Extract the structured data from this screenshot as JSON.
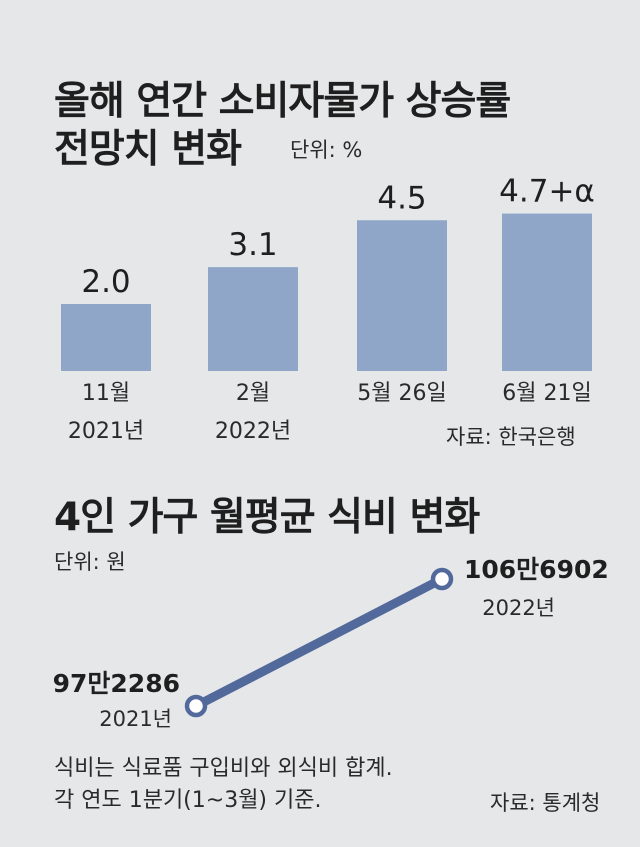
{
  "chart_data": [
    {
      "type": "bar",
      "title_lines": [
        "올해 연간 소비자물가 상승률",
        "전망치 변화"
      ],
      "unit": "단위: %",
      "categories": [
        {
          "line1": "11월",
          "line2": "2021년"
        },
        {
          "line1": "2월",
          "line2": "2022년"
        },
        {
          "line1": "5월 26일",
          "line2": ""
        },
        {
          "line1": "6월 21일",
          "line2": ""
        }
      ],
      "values": [
        2.0,
        3.1,
        4.5,
        4.7
      ],
      "value_labels": [
        "2.0",
        "3.1",
        "4.5",
        "4.7+α"
      ],
      "source": "자료: 한국은행",
      "bar_color": "#8fa6c9"
    },
    {
      "type": "line",
      "title": "4인 가구 월평균 식비 변화",
      "unit": "단위: 원",
      "x": [
        "2021년",
        "2022년"
      ],
      "values": [
        972286,
        1066902
      ],
      "value_labels": [
        "97만2286",
        "106만6902"
      ],
      "line_color": "#52699b",
      "notes": [
        "식비는 식료품 구입비와 외식비 합계.",
        "각 연도 1분기(1~3월) 기준."
      ],
      "source": "자료: 통계청"
    }
  ]
}
